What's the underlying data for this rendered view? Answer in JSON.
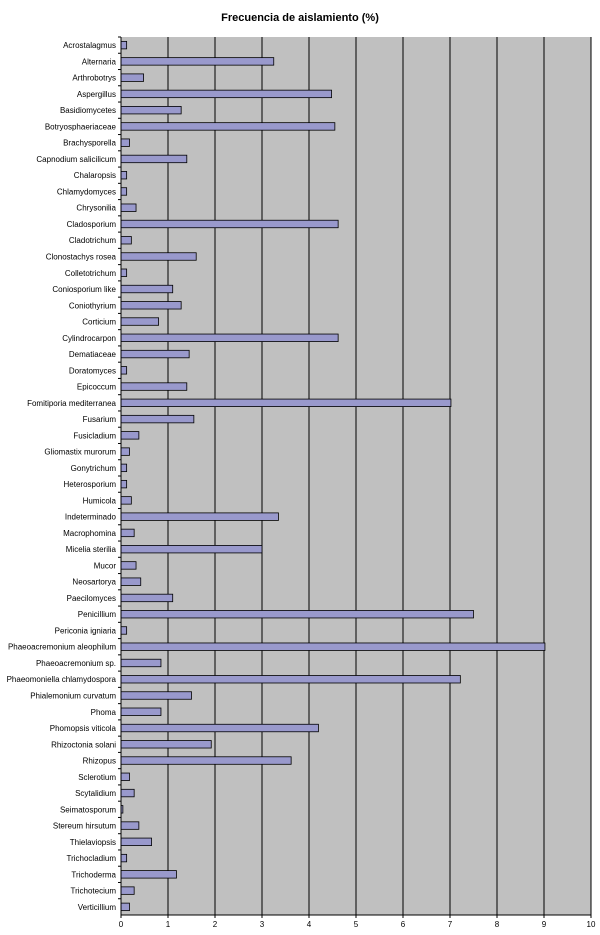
{
  "chart_data": {
    "type": "bar",
    "orientation": "horizontal",
    "title": "Frecuencia de aislamiento (%)",
    "xlabel": "",
    "ylabel": "",
    "xlim": [
      0,
      10
    ],
    "xticks": [
      "0",
      "1",
      "2",
      "3",
      "4",
      "5",
      "6",
      "7",
      "8",
      "9",
      "10"
    ],
    "grid": true,
    "bar_color": "#9999cc",
    "plot_background": "#c0c0c0",
    "categories": [
      "Acrostalagmus",
      "Alternaria",
      "Arthrobotrys",
      "Aspergillus",
      "Basidiomycetes",
      "Botryosphaeriaceae",
      "Brachysporella",
      "Capnodium salicilicum",
      "Chalaropsis",
      "Chlamydomyces",
      "Chrysonilia",
      "Cladosporium",
      "Cladotrichum",
      "Clonostachys rosea",
      "Colletotrichum",
      "Coniosporium like",
      "Coniothyrium",
      "Corticium",
      "Cylindrocarpon",
      "Dematiaceae",
      "Doratomyces",
      "Epicoccum",
      "Fomitiporia mediterranea",
      "Fusarium",
      "Fusicladium",
      "Gliomastix murorum",
      "Gonytrichum",
      "Heterosporium",
      "Humicola",
      "Indeterminado",
      "Macrophomina",
      "Micelia sterilia",
      "Mucor",
      "Neosartorya",
      "Paecilomyces",
      "Penicillium",
      "Periconia igniaria",
      "Phaeoacremonium aleophilum",
      "Phaeoacremonium sp.",
      "Phaeomoniella chlamydospora",
      "Phialemonium curvatum",
      "Phoma",
      "Phomopsis viticola",
      "Rhizoctonia solani",
      "Rhizopus",
      "Sclerotium",
      "Scytalidium",
      "Seimatosporum",
      "Stereum hirsutum",
      "Thielaviopsis",
      "Trichocladium",
      "Trichoderma",
      "Trichotecium",
      "Verticillium"
    ],
    "values": [
      0.12,
      3.25,
      0.48,
      4.48,
      1.28,
      4.55,
      0.18,
      1.4,
      0.12,
      0.12,
      0.32,
      4.62,
      0.22,
      1.6,
      0.12,
      1.1,
      1.28,
      0.8,
      4.62,
      1.45,
      0.12,
      1.4,
      7.02,
      1.55,
      0.38,
      0.18,
      0.12,
      0.12,
      0.22,
      3.35,
      0.28,
      3.0,
      0.32,
      0.42,
      1.1,
      7.5,
      0.12,
      9.02,
      0.85,
      7.22,
      1.5,
      0.85,
      4.2,
      1.92,
      3.62,
      0.18,
      0.28,
      0.04,
      0.38,
      0.65,
      0.12,
      1.18,
      0.28,
      0.18
    ]
  }
}
